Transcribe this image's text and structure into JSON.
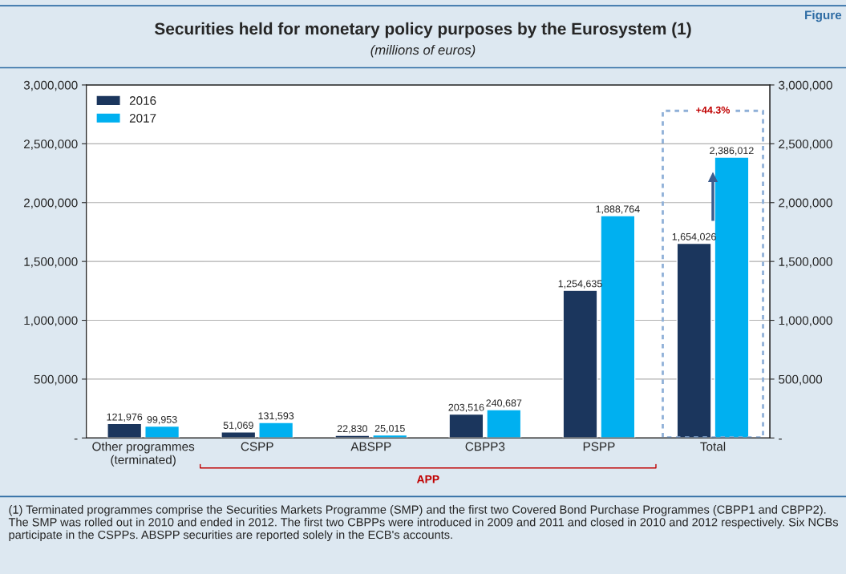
{
  "chart_data": {
    "type": "bar",
    "title": "Securities held for monetary policy purposes by the Eurosystem (1)",
    "subtitle": "(millions of euros)",
    "categories": [
      "Other programmes\n(terminated)",
      "CSPP",
      "ABSPP",
      "CBPP3",
      "PSPP",
      "Total"
    ],
    "series": [
      {
        "name": "2016",
        "color": "#1b365d",
        "values": [
          121976,
          51069,
          22830,
          203516,
          1254635,
          1654026
        ],
        "value_labels": [
          "121,976",
          "51,069",
          "22,830",
          "203,516",
          "1,254,635",
          "1,654,026"
        ]
      },
      {
        "name": "2017",
        "color": "#00b0f0",
        "values": [
          99953,
          131593,
          25015,
          240687,
          1888764,
          2386012
        ],
        "value_labels": [
          "99,953",
          "131,593",
          "25,015",
          "240,687",
          "1,888,764",
          "2,386,012"
        ]
      }
    ],
    "ylim": [
      0,
      3000000
    ],
    "yticks": [
      {
        "value": 0,
        "label": "-"
      },
      {
        "value": 500000,
        "label": "500,000"
      },
      {
        "value": 1000000,
        "label": "1,000,000"
      },
      {
        "value": 1500000,
        "label": "1,500,000"
      },
      {
        "value": 2000000,
        "label": "2,000,000"
      },
      {
        "value": 2500000,
        "label": "2,500,000"
      },
      {
        "value": 3000000,
        "label": "3,000,000"
      }
    ],
    "y2lim": [
      0,
      3000000
    ],
    "y2ticks": [
      {
        "value": 0,
        "label": "-"
      },
      {
        "value": 500000,
        "label": "500,000"
      },
      {
        "value": 1000000,
        "label": "1,000,000"
      },
      {
        "value": 1500000,
        "label": "1,500,000"
      },
      {
        "value": 2000000,
        "label": "2,000,000"
      },
      {
        "value": 2500000,
        "label": "2,500,000"
      },
      {
        "value": 3000000,
        "label": "3,000,000"
      }
    ],
    "grid": "y",
    "legend": "top left",
    "annotations": [
      "+44.3%",
      "APP",
      "(1) Terminated programmes comprise the Securities Markets Programme (SMP) and the first two Covered Bond Purchase Programmes (CBPP1 and CBPP2). The SMP was rolled out in 2010 and ended in 2012. The first two CBPPs were introduced in 2009 and 2011 and closed in 2010 and 2012 respectively. Six NCBs participate in the CSPPs. ABSPP securities are reported solely in the ECB's accounts.",
      "Figure"
    ]
  }
}
